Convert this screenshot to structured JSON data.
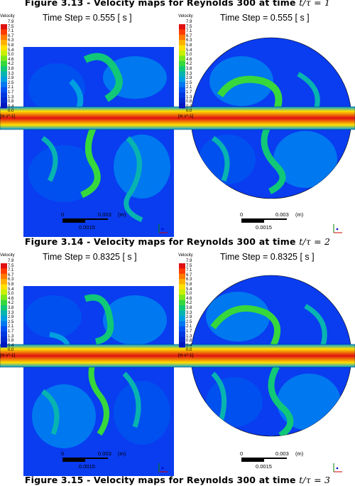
{
  "captions": {
    "top": {
      "prefix": "Figure 3.13 - Velocity maps for Reynolds 300 at time ",
      "math": "t/τ = 1"
    },
    "middle": {
      "prefix": "Figure 3.14 - Velocity maps for Reynolds 300 at time ",
      "math": "t/τ = 2"
    },
    "bottom": {
      "prefix": "Figure 3.15 - Velocity maps for Reynolds 300 at time ",
      "math": "t/τ = 3"
    }
  },
  "colorbar": {
    "title": "Velocity",
    "unit": "[m s^-1]",
    "ticks": [
      "7.9",
      "7.5",
      "7.1",
      "6.7",
      "6.3",
      "5.8",
      "5.4",
      "5.0",
      "4.6",
      "4.2",
      "3.8",
      "3.3",
      "2.9",
      "2.5",
      "2.1",
      "1.7",
      "1.3",
      "0.8",
      "0.4",
      "0.0"
    ],
    "colors": [
      "#e01010",
      "#ff3b00",
      "#ff7a00",
      "#ffb000",
      "#ffe000",
      "#c8f000",
      "#7ce81a",
      "#36d83c",
      "#10c878",
      "#08b4b0",
      "#00a0e0",
      "#0078f0",
      "#0050f0",
      "#0038e0",
      "#0028d0",
      "#0018c0"
    ]
  },
  "panels": [
    {
      "timestep_left": "Time Step = 0.555 [ s ]",
      "timestep_right": "Time Step = 0.555 [ s ]",
      "scale_left": {
        "zero": "0",
        "mid": "0.003",
        "unit": "(m)",
        "sub": "0.0015"
      },
      "scale_right": {
        "zero": "0",
        "mid": "0.003",
        "unit": "(m)",
        "sub": "0.0015"
      }
    },
    {
      "timestep_left": "Time Step = 0.8325 [ s ]",
      "timestep_right": "Time Step = 0.8325 [ s ]",
      "scale_left": {
        "zero": "0",
        "mid": "0.003",
        "unit": "(m)",
        "sub": "0.0015"
      },
      "scale_right": {
        "zero": "0",
        "mid": "0.003",
        "unit": "(m)",
        "sub": "0.0015"
      }
    }
  ]
}
